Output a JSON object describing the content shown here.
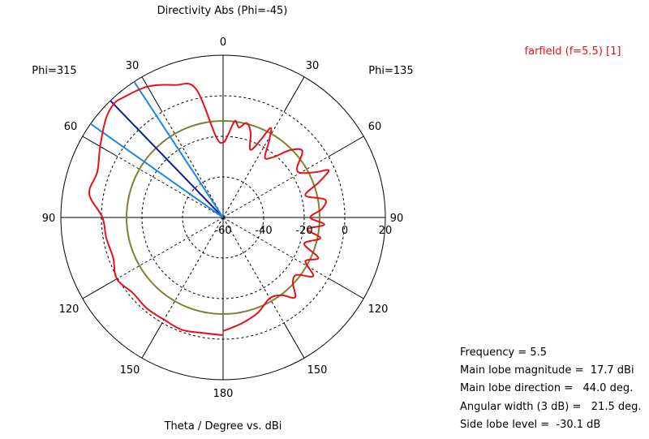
{
  "chart_data": {
    "type": "polar",
    "title": "Directivity Abs (Phi=-45)",
    "xlabel": "Theta / Degree vs. dBi",
    "left_half_label": "Phi=315",
    "right_half_label": "Phi=135",
    "angle_labels": {
      "top": "0",
      "left_30": "30",
      "left_60": "60",
      "left_90": "90",
      "left_120": "120",
      "left_150": "150",
      "bottom": "180",
      "right_30": "30",
      "right_60": "60",
      "right_90": "90",
      "right_120": "120",
      "right_150": "150"
    },
    "radial_ticks": [
      "-60",
      "-40",
      "-20",
      "0",
      "20"
    ],
    "rlim": [
      -60,
      20
    ],
    "grid": true,
    "legend": {
      "label": "farfield (f=5.5) [1]",
      "position": "top-right"
    },
    "series": [
      {
        "name": "farfield (f=5.5) [1]",
        "color": "#e8101a",
        "angle_unit": "degrees clockwise from 0 (negative = Phi=315 side)",
        "theta": [
          -180,
          -170,
          -160,
          -150,
          -140,
          -130,
          -120,
          -110,
          -100,
          -90,
          -80,
          -70,
          -60,
          -50,
          -44,
          -40,
          -30,
          -20,
          -12,
          -5,
          0,
          3,
          7,
          10,
          14,
          18,
          22,
          26,
          28,
          31,
          35,
          40,
          45,
          50,
          56,
          60,
          64,
          66,
          70,
          75,
          80,
          85,
          90,
          94,
          98,
          102,
          108,
          113,
          118,
          123,
          128,
          133,
          138,
          143,
          150,
          160,
          170,
          180
        ],
        "values": [
          -2,
          -2.2,
          -1,
          -1.8,
          -1.5,
          -2,
          0.5,
          -2.3,
          -1.5,
          -0.5,
          7,
          6,
          10,
          15.5,
          17.7,
          17,
          14.5,
          9.5,
          5,
          -20,
          -23,
          -20,
          -12,
          -15,
          -12,
          -16,
          -24,
          -17,
          -10,
          -16,
          -24,
          -21,
          -13,
          -9,
          -16,
          -16,
          -9,
          -3,
          -10,
          -18,
          -9,
          -11,
          -17,
          -10,
          -18,
          -11,
          -18,
          -9,
          -14,
          -7,
          -14,
          -13,
          -7,
          -12,
          -14,
          -10,
          -7,
          -4
        ]
      }
    ],
    "main_lobe_lines": [
      {
        "name": "main lobe direction",
        "color": "#0f1aa8",
        "theta": -44
      },
      {
        "name": "3 dB beamwidth edge 1",
        "color": "#1e88e0",
        "theta": -33.25
      },
      {
        "name": "3 dB beamwidth edge 2",
        "color": "#1e88e0",
        "theta": -54.75
      }
    ],
    "reference_circle": {
      "name": "side lobe level",
      "color": "#808030"
    },
    "stats": {
      "frequency": "Frequency = 5.5",
      "main_lobe_magnitude": "Main lobe magnitude =  17.7 dBi",
      "main_lobe_direction": "Main lobe direction =   44.0 deg.",
      "angular_width": "Angular width (3 dB) =   21.5 deg.",
      "side_lobe_level": "Side lobe level =  -30.1 dB"
    },
    "colors": {
      "grid": "#000000",
      "curve": "#e8101a",
      "main_lobe": "#0f1aa8",
      "beamwidth": "#1e88e0",
      "reference_circle": "#808030",
      "legend_text": "#e8101a"
    }
  }
}
